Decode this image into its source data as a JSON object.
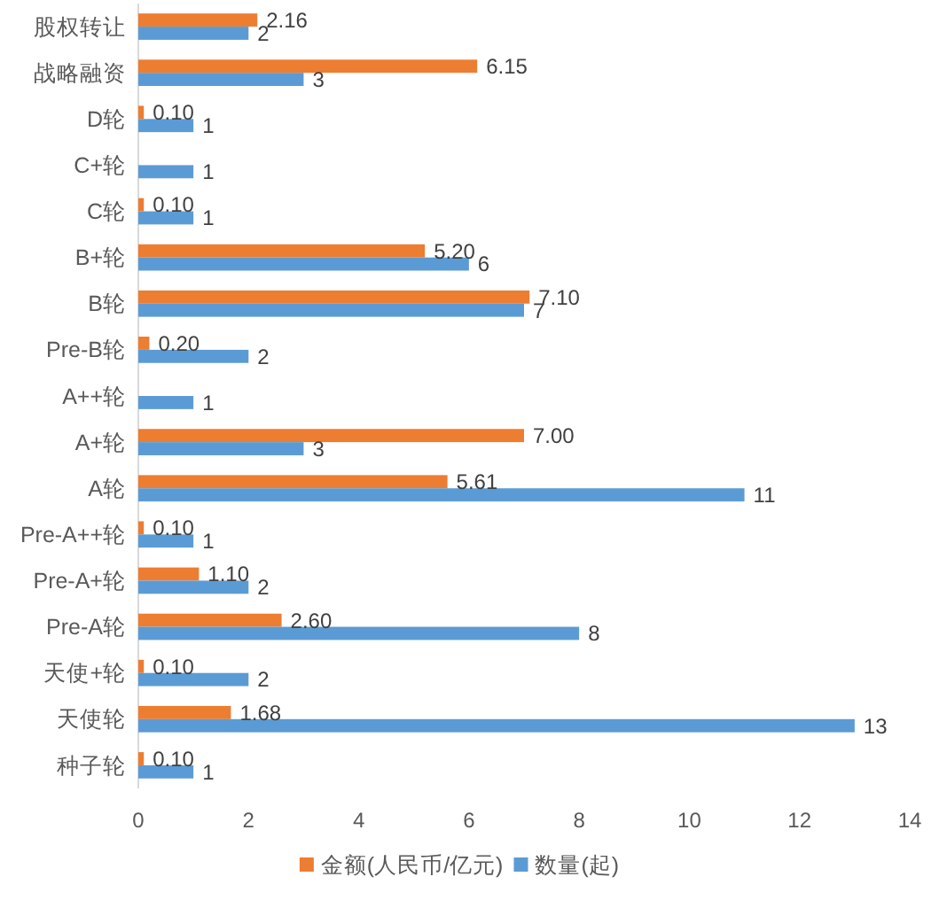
{
  "chart_data": {
    "type": "bar",
    "orientation": "horizontal",
    "categories": [
      "股权转让",
      "战略融资",
      "D轮",
      "C+轮",
      "C轮",
      "B+轮",
      "B轮",
      "Pre-B轮",
      "A++轮",
      "A+轮",
      "A轮",
      "Pre-A++轮",
      "Pre-A+轮",
      "Pre-A轮",
      "天使+轮",
      "天使轮",
      "种子轮"
    ],
    "series": [
      {
        "name": "金额(人民币/亿元)",
        "color": "#ed7d31",
        "values": [
          2.16,
          6.15,
          0.1,
          null,
          0.1,
          5.2,
          7.1,
          0.2,
          null,
          7.0,
          5.61,
          0.1,
          1.1,
          2.6,
          0.1,
          1.68,
          0.1
        ],
        "value_labels": [
          "2.16",
          "6.15",
          "0.10",
          null,
          "0.10",
          "5.20",
          "7.10",
          "0.20",
          null,
          "7.00",
          "5.61",
          "0.10",
          "1.10",
          "2.60",
          "0.10",
          "1.68",
          "0.10"
        ]
      },
      {
        "name": "数量(起)",
        "color": "#5b9bd5",
        "values": [
          2,
          3,
          1,
          1,
          1,
          6,
          7,
          2,
          1,
          3,
          11,
          1,
          2,
          8,
          2,
          13,
          1
        ],
        "value_labels": [
          "2",
          "3",
          "1",
          "1",
          "1",
          "6",
          "7",
          "2",
          "1",
          "3",
          "11",
          "1",
          "2",
          "8",
          "2",
          "13",
          "1"
        ]
      }
    ],
    "xlim": [
      0,
      14
    ],
    "xticks": [
      0,
      2,
      4,
      6,
      8,
      10,
      12,
      14
    ],
    "legend": "bottom"
  }
}
